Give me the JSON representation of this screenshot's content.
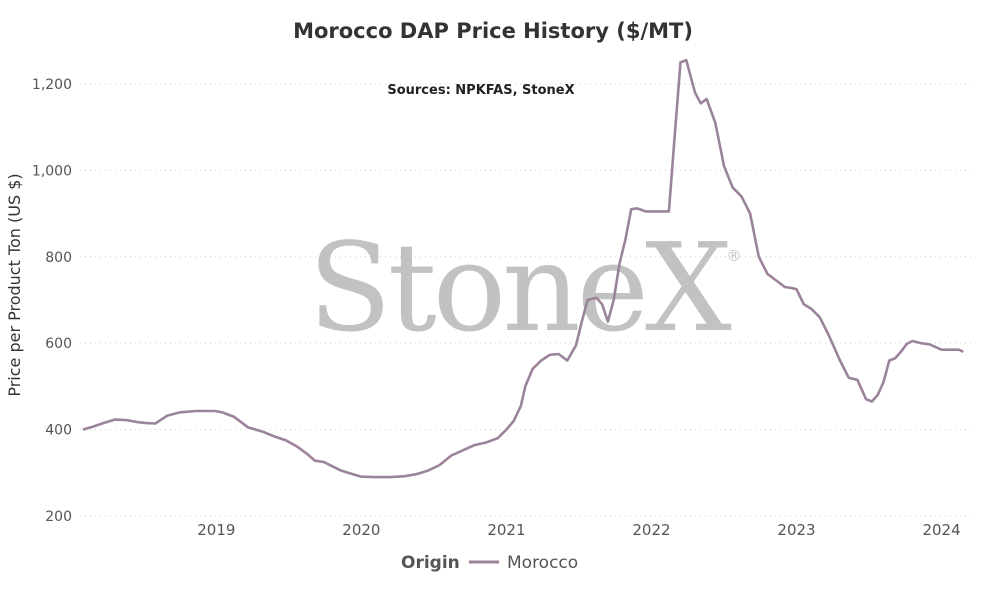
{
  "chart_data": {
    "type": "line",
    "title": "Morocco DAP Price History ($/MT)",
    "subtitle": "Sources: NPKFAS, StoneX",
    "xlabel": "",
    "ylabel": "Price per Product Ton (US $)",
    "ylim": [
      200,
      1260
    ],
    "yticks": [
      200,
      400,
      600,
      800,
      1000,
      1200
    ],
    "ytick_labels": [
      "200",
      "400",
      "600",
      "800",
      "1,000",
      "1,200"
    ],
    "xlim": [
      2018.06,
      2024.21
    ],
    "xticks": [
      2019,
      2020,
      2021,
      2022,
      2023,
      2024
    ],
    "xtick_labels": [
      "2019",
      "2020",
      "2021",
      "2022",
      "2023",
      "2024"
    ],
    "grid": "horizontal dotted",
    "legend": {
      "title": "Origin",
      "placement": "bottom-center"
    },
    "watermark": "StoneX",
    "watermark_mark": "®",
    "series": [
      {
        "name": "Morocco",
        "color": "#9b839b",
        "x": [
          2018.08,
          2018.15,
          2018.22,
          2018.3,
          2018.38,
          2018.46,
          2018.52,
          2018.58,
          2018.66,
          2018.75,
          2018.86,
          2018.99,
          2019.04,
          2019.08,
          2019.12,
          2019.16,
          2019.22,
          2019.32,
          2019.4,
          2019.48,
          2019.56,
          2019.62,
          2019.68,
          2019.74,
          2019.8,
          2019.86,
          2019.92,
          2020.0,
          2020.1,
          2020.2,
          2020.3,
          2020.38,
          2020.46,
          2020.54,
          2020.62,
          2020.7,
          2020.78,
          2020.86,
          2020.94,
          2021.0,
          2021.05,
          2021.1,
          2021.13,
          2021.18,
          2021.24,
          2021.3,
          2021.36,
          2021.42,
          2021.48,
          2021.52,
          2021.56,
          2021.62,
          2021.66,
          2021.7,
          2021.74,
          2021.78,
          2021.82,
          2021.86,
          2021.9,
          2021.96,
          2022.04,
          2022.12,
          2022.16,
          2022.2,
          2022.24,
          2022.3,
          2022.34,
          2022.38,
          2022.44,
          2022.5,
          2022.56,
          2022.62,
          2022.68,
          2022.74,
          2022.8,
          2022.86,
          2022.92,
          2022.96,
          2023.0,
          2023.05,
          2023.1,
          2023.16,
          2023.22,
          2023.26,
          2023.3,
          2023.36,
          2023.42,
          2023.48,
          2023.52,
          2023.56,
          2023.6,
          2023.64,
          2023.68,
          2023.72,
          2023.76,
          2023.8,
          2023.86,
          2023.92,
          2024.0,
          2024.06,
          2024.12,
          2024.15
        ],
        "y": [
          400,
          407,
          415,
          423,
          422,
          417,
          415,
          414,
          432,
          440,
          443,
          443,
          440,
          435,
          430,
          420,
          405,
          395,
          384,
          375,
          360,
          345,
          328,
          325,
          315,
          305,
          299,
          291,
          290,
          290,
          292,
          297,
          305,
          318,
          340,
          352,
          364,
          370,
          380,
          400,
          420,
          455,
          500,
          540,
          560,
          573,
          575,
          560,
          595,
          650,
          700,
          705,
          690,
          650,
          700,
          785,
          840,
          910,
          912,
          905,
          905,
          905,
          1080,
          1250,
          1255,
          1180,
          1155,
          1165,
          1110,
          1010,
          960,
          940,
          900,
          800,
          760,
          745,
          730,
          728,
          725,
          690,
          680,
          660,
          620,
          590,
          560,
          520,
          515,
          470,
          465,
          480,
          510,
          560,
          565,
          580,
          598,
          605,
          600,
          597,
          585,
          585,
          585,
          580
        ]
      }
    ]
  }
}
